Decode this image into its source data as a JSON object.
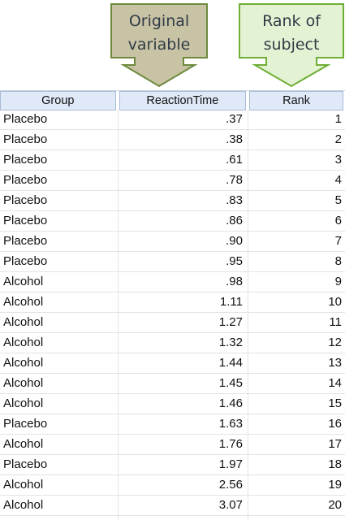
{
  "callouts": {
    "original": {
      "text": "Original\nvariable",
      "fill": "#c9c3a6",
      "stroke": "#6d8a3c"
    },
    "rank": {
      "text": "Rank of\nsubject",
      "fill": "#e4f2d4",
      "stroke": "#6fae35"
    }
  },
  "table": {
    "columns": [
      "Group",
      "ReactionTime",
      "Rank"
    ],
    "rows": [
      [
        "Placebo",
        ".37",
        "1"
      ],
      [
        "Placebo",
        ".38",
        "2"
      ],
      [
        "Placebo",
        ".61",
        "3"
      ],
      [
        "Placebo",
        ".78",
        "4"
      ],
      [
        "Placebo",
        ".83",
        "5"
      ],
      [
        "Placebo",
        ".86",
        "6"
      ],
      [
        "Placebo",
        ".90",
        "7"
      ],
      [
        "Placebo",
        ".95",
        "8"
      ],
      [
        "Alcohol",
        ".98",
        "9"
      ],
      [
        "Alcohol",
        "1.11",
        "10"
      ],
      [
        "Alcohol",
        "1.27",
        "11"
      ],
      [
        "Alcohol",
        "1.32",
        "12"
      ],
      [
        "Alcohol",
        "1.44",
        "13"
      ],
      [
        "Alcohol",
        "1.45",
        "14"
      ],
      [
        "Alcohol",
        "1.46",
        "15"
      ],
      [
        "Placebo",
        "1.63",
        "16"
      ],
      [
        "Alcohol",
        "1.76",
        "17"
      ],
      [
        "Placebo",
        "1.97",
        "18"
      ],
      [
        "Alcohol",
        "2.56",
        "19"
      ],
      [
        "Alcohol",
        "3.07",
        "20"
      ]
    ]
  }
}
